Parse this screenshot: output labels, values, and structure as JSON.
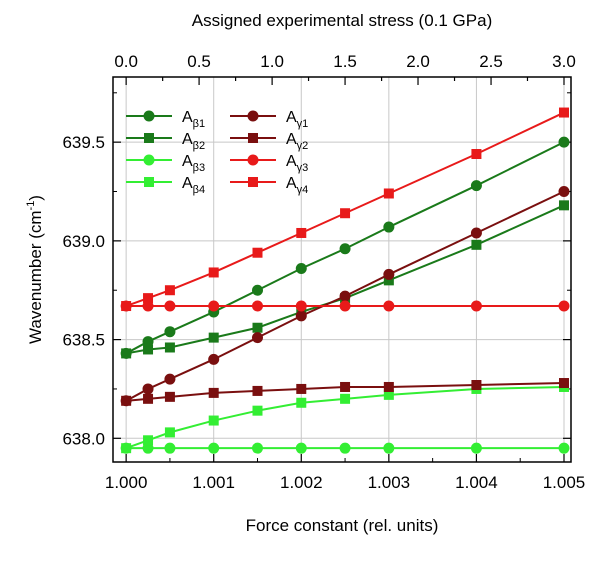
{
  "chart_data": {
    "type": "line",
    "xlabel": "Force constant (rel. units)",
    "x2label": "Assigned experimental stress (0.1 GPa)",
    "ylabel_main": "Wavenumber (cm",
    "ylabel_sup": "-1",
    "ylabel_end": ")",
    "xlim": [
      0.99985,
      1.00508
    ],
    "ylim": [
      637.88,
      639.83
    ],
    "xticks": [
      1.0,
      1.001,
      1.002,
      1.003,
      1.004,
      1.005
    ],
    "xtick_labels": [
      "1.000",
      "1.001",
      "1.002",
      "1.003",
      "1.004",
      "1.005"
    ],
    "yticks": [
      638.0,
      638.5,
      639.0,
      639.5
    ],
    "ytick_labels": [
      "638.0",
      "638.5",
      "639.0",
      "639.5"
    ],
    "x2ticks_at": [
      1.0,
      1.0005,
      1.001,
      1.0015,
      1.002,
      1.0025,
      1.003,
      1.004,
      1.005
    ],
    "x2tick_labels": [
      "0.0",
      "0.5",
      "1.0",
      "1.5",
      "2.0",
      "2.5",
      "3.0"
    ],
    "x2tick_label_at": [
      1.0,
      1.000833,
      1.001667,
      1.0025,
      1.003333,
      1.004167,
      1.005
    ],
    "grid": true,
    "legend_position": "top-left",
    "x": [
      1.0,
      1.00025,
      1.0005,
      1.001,
      1.0015,
      1.002,
      1.0025,
      1.003,
      1.004,
      1.005
    ],
    "series": [
      {
        "name_main": "A",
        "name_sub": "β1",
        "color": "#1a7a1a",
        "marker": "circle",
        "values": [
          638.43,
          638.49,
          638.54,
          638.64,
          638.75,
          638.86,
          638.96,
          639.07,
          639.28,
          639.5
        ]
      },
      {
        "name_main": "A",
        "name_sub": "β2",
        "color": "#1a7a1a",
        "marker": "square",
        "values": [
          638.43,
          638.45,
          638.46,
          638.51,
          638.56,
          638.64,
          638.71,
          638.8,
          638.98,
          639.18
        ]
      },
      {
        "name_main": "A",
        "name_sub": "β3",
        "color": "#33ee33",
        "marker": "circle",
        "values": [
          637.95,
          637.95,
          637.95,
          637.95,
          637.95,
          637.95,
          637.95,
          637.95,
          637.95,
          637.95
        ]
      },
      {
        "name_main": "A",
        "name_sub": "β4",
        "color": "#33ee33",
        "marker": "square",
        "values": [
          637.95,
          637.99,
          638.03,
          638.09,
          638.14,
          638.18,
          638.2,
          638.22,
          638.25,
          638.26
        ]
      },
      {
        "name_main": "A",
        "name_sub": "γ1",
        "color": "#7a0f0f",
        "marker": "circle",
        "values": [
          638.19,
          638.25,
          638.3,
          638.4,
          638.51,
          638.62,
          638.72,
          638.83,
          639.04,
          639.25
        ]
      },
      {
        "name_main": "A",
        "name_sub": "γ2",
        "color": "#7a0f0f",
        "marker": "square",
        "values": [
          638.19,
          638.2,
          638.21,
          638.23,
          638.24,
          638.25,
          638.26,
          638.26,
          638.27,
          638.28
        ]
      },
      {
        "name_main": "A",
        "name_sub": "γ3",
        "color": "#e81a1a",
        "marker": "circle",
        "values": [
          638.67,
          638.67,
          638.67,
          638.67,
          638.67,
          638.67,
          638.67,
          638.67,
          638.67,
          638.67
        ]
      },
      {
        "name_main": "A",
        "name_sub": "γ4",
        "color": "#e81a1a",
        "marker": "square",
        "values": [
          638.67,
          638.71,
          638.75,
          638.84,
          638.94,
          639.04,
          639.14,
          639.24,
          639.44,
          639.65
        ]
      }
    ],
    "legend_columns": [
      [
        "β1",
        "β2",
        "β3",
        "β4"
      ],
      [
        "γ1",
        "γ2",
        "γ3",
        "γ4"
      ]
    ]
  }
}
